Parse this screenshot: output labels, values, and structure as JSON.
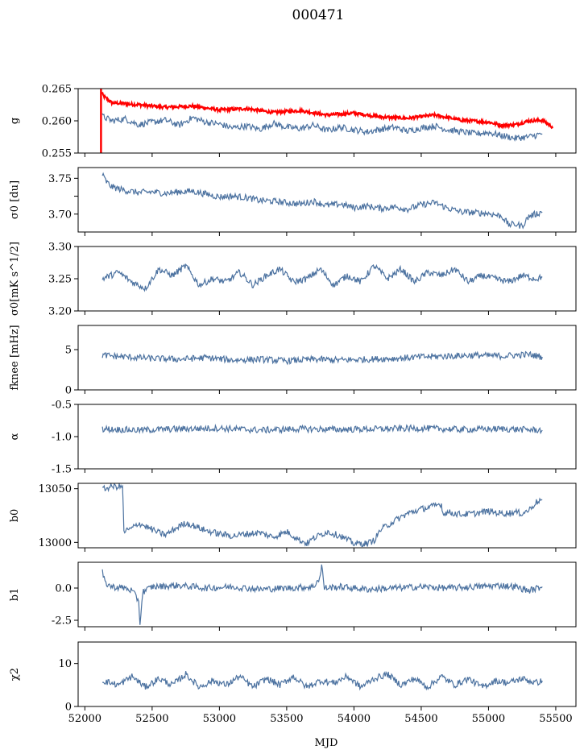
{
  "title": "000471",
  "chart_data": {
    "type": "line",
    "title": "000471",
    "xlabel": "MJD",
    "xlim": [
      51950,
      55650
    ],
    "xticks": [
      52000,
      52500,
      53000,
      53500,
      54000,
      54500,
      55000,
      55500
    ],
    "xtick_labels": [
      "52000",
      "52500",
      "53000",
      "53500",
      "54000",
      "54500",
      "55000",
      "55500"
    ],
    "line_color": "#4c72a0",
    "highlight_color": "#ff0000",
    "panels": [
      {
        "ylabel": "g",
        "ylim": [
          0.255,
          0.265
        ],
        "yticks": [
          0.255,
          0.26,
          0.265
        ],
        "ytick_labels": [
          "0.255",
          "0.260",
          "0.265"
        ],
        "series": [
          {
            "name": "g (red)",
            "color": "#ff0000",
            "x": [
              52120,
              52140,
              52200,
              52400,
              52600,
              52800,
              53000,
              53200,
              53400,
              53600,
              53800,
              54000,
              54200,
              54400,
              54600,
              54800,
              55000,
              55100,
              55200,
              55300,
              55400,
              55480
            ],
            "y": [
              0.2645,
              0.2638,
              0.2628,
              0.2625,
              0.2621,
              0.2623,
              0.2617,
              0.2619,
              0.2613,
              0.2616,
              0.2609,
              0.2612,
              0.2606,
              0.2604,
              0.2609,
              0.2601,
              0.2598,
              0.2593,
              0.2594,
              0.26,
              0.2601,
              0.259
            ]
          },
          {
            "name": "g (blue)",
            "color": "#4c72a0",
            "x": [
              52130,
              52200,
              52300,
              52400,
              52500,
              52600,
              52700,
              52800,
              52900,
              53000,
              53100,
              53200,
              53300,
              53400,
              53500,
              53600,
              53700,
              53800,
              53900,
              54000,
              54100,
              54200,
              54300,
              54400,
              54500,
              54600,
              54700,
              54800,
              54900,
              55000,
              55100,
              55200,
              55300,
              55400
            ],
            "y": [
              0.2607,
              0.26,
              0.2603,
              0.2594,
              0.2598,
              0.2601,
              0.2593,
              0.2605,
              0.2598,
              0.2595,
              0.2589,
              0.2592,
              0.2587,
              0.2596,
              0.259,
              0.2588,
              0.2593,
              0.2585,
              0.259,
              0.2586,
              0.2583,
              0.2587,
              0.259,
              0.2584,
              0.2589,
              0.2592,
              0.2586,
              0.2583,
              0.258,
              0.2582,
              0.2577,
              0.2573,
              0.2575,
              0.258
            ]
          }
        ]
      },
      {
        "ylabel": "σ0 [du]",
        "ylim": [
          3.675,
          3.765
        ],
        "yticks": [
          3.7,
          3.725,
          3.75
        ],
        "ytick_labels": [
          "3.70",
          "",
          "3.75"
        ],
        "series": [
          {
            "name": "sigma0 du",
            "color": "#4c72a0",
            "x": [
              52130,
              52160,
              52200,
              52300,
              52400,
              52500,
              52600,
              52700,
              52800,
              52900,
              53000,
              53100,
              53200,
              53300,
              53400,
              53500,
              53600,
              53700,
              53800,
              53900,
              54000,
              54100,
              54200,
              54300,
              54400,
              54500,
              54600,
              54700,
              54800,
              54900,
              55000,
              55100,
              55150,
              55200,
              55250,
              55300,
              55400
            ],
            "y": [
              3.755,
              3.745,
              3.738,
              3.733,
              3.73,
              3.731,
              3.729,
              3.731,
              3.732,
              3.728,
              3.724,
              3.725,
              3.723,
              3.719,
              3.718,
              3.716,
              3.714,
              3.718,
              3.712,
              3.714,
              3.709,
              3.711,
              3.708,
              3.71,
              3.707,
              3.713,
              3.716,
              3.708,
              3.703,
              3.702,
              3.701,
              3.697,
              3.685,
              3.686,
              3.683,
              3.697,
              3.703
            ]
          }
        ]
      },
      {
        "ylabel": "σ0[mK s^1/2]",
        "ylim": [
          3.2,
          3.3
        ],
        "yticks": [
          3.2,
          3.25,
          3.3
        ],
        "ytick_labels": [
          "3.20",
          "3.25",
          "3.30"
        ],
        "series": [
          {
            "name": "sigma0 mK",
            "color": "#4c72a0",
            "x": [
              52130,
              52250,
              52350,
              52450,
              52550,
              52650,
              52750,
              52850,
              52950,
              53050,
              53150,
              53250,
              53350,
              53450,
              53550,
              53650,
              53750,
              53850,
              53950,
              54050,
              54150,
              54250,
              54350,
              54450,
              54550,
              54650,
              54750,
              54850,
              54950,
              55050,
              55150,
              55250,
              55350,
              55400
            ],
            "y": [
              3.25,
              3.26,
              3.245,
              3.235,
              3.265,
              3.255,
              3.27,
              3.24,
              3.25,
              3.245,
              3.26,
              3.24,
              3.255,
              3.265,
              3.245,
              3.25,
              3.265,
              3.24,
              3.255,
              3.245,
              3.27,
              3.25,
              3.265,
              3.245,
              3.26,
              3.255,
              3.265,
              3.245,
              3.255,
              3.25,
              3.245,
              3.255,
              3.25,
              3.252
            ]
          }
        ]
      },
      {
        "ylabel": "fknee [mHz]",
        "ylim": [
          0,
          8
        ],
        "yticks": [
          0,
          5
        ],
        "ytick_labels": [
          "0",
          "5"
        ],
        "series": [
          {
            "name": "fknee",
            "color": "#4c72a0",
            "x": [
              52130,
              52300,
              52500,
              52700,
              52900,
              53100,
              53300,
              53500,
              53700,
              53900,
              54100,
              54300,
              54500,
              54700,
              54900,
              55100,
              55300,
              55400
            ],
            "y": [
              4.3,
              4.1,
              3.9,
              3.8,
              4.0,
              3.7,
              3.8,
              3.6,
              3.8,
              3.7,
              3.8,
              3.9,
              4.1,
              4.2,
              4.3,
              4.2,
              4.4,
              4.1
            ]
          }
        ]
      },
      {
        "ylabel": "α",
        "ylim": [
          -1.5,
          -0.5
        ],
        "yticks": [
          -1.5,
          -1.0,
          -0.5
        ],
        "ytick_labels": [
          "-1.5",
          "-1.0",
          "-0.5"
        ],
        "series": [
          {
            "name": "alpha",
            "color": "#4c72a0",
            "x": [
              52130,
              52400,
              52700,
              53000,
              53300,
              53600,
              53900,
              54200,
              54500,
              54800,
              55100,
              55400
            ],
            "y": [
              -0.88,
              -0.9,
              -0.88,
              -0.87,
              -0.9,
              -0.88,
              -0.89,
              -0.88,
              -0.87,
              -0.89,
              -0.88,
              -0.9
            ]
          }
        ]
      },
      {
        "ylabel": "b0",
        "ylim": [
          12995,
          13055
        ],
        "yticks": [
          13000,
          13050
        ],
        "ytick_labels": [
          "13000",
          "13050"
        ],
        "series": [
          {
            "name": "b0",
            "color": "#4c72a0",
            "x": [
              52130,
              52150,
              52200,
              52280,
              52290,
              52350,
              52400,
              52450,
              52500,
              52550,
              52600,
              52700,
              52750,
              52800,
              52900,
              53000,
              53100,
              53200,
              53300,
              53400,
              53500,
              53600,
              53650,
              53700,
              53800,
              53900,
              54000,
              54100,
              54150,
              54200,
              54300,
              54400,
              54500,
              54600,
              54650,
              54660,
              54700,
              54800,
              54900,
              55000,
              55100,
              55200,
              55250,
              55300,
              55350,
              55400
            ],
            "y": [
              13049,
              13050,
              13052,
              13052,
              13010,
              13013,
              13018,
              13015,
              13012,
              13009,
              13007,
              13015,
              13018,
              13016,
              13011,
              13008,
              13006,
              13008,
              13009,
              13005,
              13010,
              13002,
              12999,
              13004,
              13010,
              13006,
              12999,
              12999,
              13002,
              13012,
              13020,
              13027,
              13031,
              13034,
              13036,
              13027,
              13028,
              13026,
              13027,
              13029,
              13027,
              13028,
              13027,
              13030,
              13037,
              13040
            ]
          }
        ]
      },
      {
        "ylabel": "b1",
        "ylim": [
          -3.0,
          2.0
        ],
        "yticks": [
          -2.5,
          0.0
        ],
        "ytick_labels": [
          "-2.5",
          "0.0"
        ],
        "series": [
          {
            "name": "b1",
            "color": "#4c72a0",
            "x": [
              52130,
              52150,
              52200,
              52300,
              52350,
              52400,
              52410,
              52430,
              52500,
              52700,
              52900,
              53100,
              53300,
              53500,
              53700,
              53750,
              53760,
              53780,
              53900,
              54100,
              54300,
              54500,
              54700,
              54900,
              55100,
              55200,
              55300,
              55400
            ],
            "y": [
              1.2,
              0.4,
              0.1,
              0.0,
              -0.2,
              -1.0,
              -2.8,
              -0.3,
              0.1,
              0.2,
              0.0,
              0.1,
              -0.1,
              0.0,
              0.1,
              0.9,
              1.8,
              0.0,
              0.1,
              -0.1,
              0.0,
              0.1,
              0.0,
              0.1,
              0.2,
              0.1,
              -0.2,
              0.1
            ]
          }
        ]
      },
      {
        "ylabel": "χ2",
        "ylim": [
          0,
          15
        ],
        "yticks": [
          0,
          10
        ],
        "ytick_labels": [
          "0",
          "10"
        ],
        "series": [
          {
            "name": "chi2",
            "color": "#4c72a0",
            "x": [
              52130,
              52250,
              52350,
              52450,
              52550,
              52650,
              52750,
              52850,
              52950,
              53050,
              53150,
              53250,
              53350,
              53450,
              53550,
              53650,
              53750,
              53850,
              53950,
              54050,
              54150,
              54250,
              54350,
              54450,
              54550,
              54650,
              54750,
              54850,
              54950,
              55050,
              55150,
              55250,
              55350,
              55400
            ],
            "y": [
              6.0,
              5.0,
              7.0,
              4.5,
              6.5,
              5.0,
              7.5,
              4.5,
              6.0,
              5.0,
              7.0,
              4.5,
              6.5,
              5.0,
              7.0,
              4.5,
              6.0,
              5.5,
              7.0,
              4.5,
              6.5,
              7.5,
              5.0,
              6.5,
              4.5,
              7.0,
              5.0,
              6.5,
              4.5,
              6.0,
              5.5,
              6.5,
              5.5,
              6.0
            ]
          }
        ]
      }
    ]
  }
}
